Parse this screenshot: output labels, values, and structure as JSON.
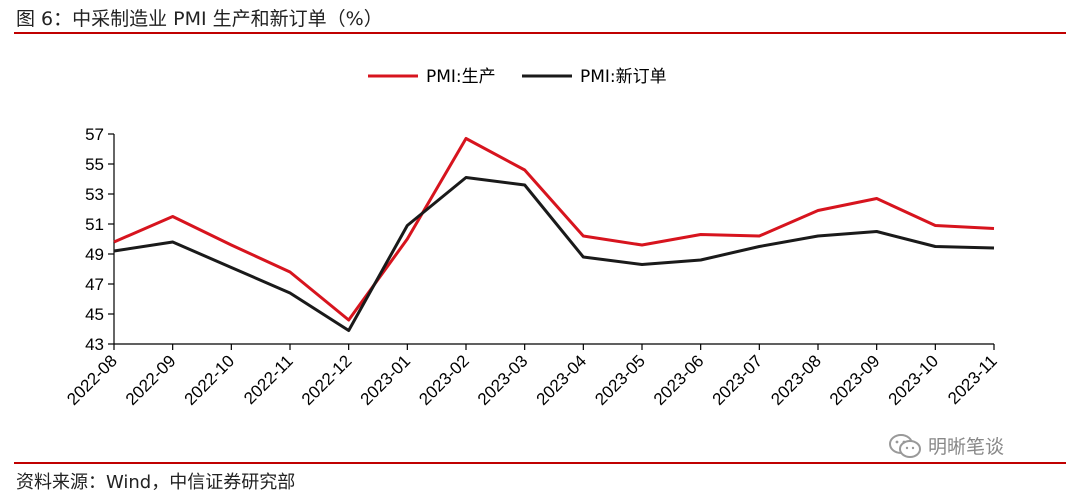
{
  "header": {
    "title": "图 6：中采制造业 PMI 生产和新订单（%）"
  },
  "footer": {
    "source": "资料来源：Wind，中信证券研究部"
  },
  "watermark": {
    "text": "明晰笔谈",
    "icon": "wechat-icon"
  },
  "colors": {
    "rule": "#c00000",
    "series1": "#d7141e",
    "series2": "#1a1a1a"
  },
  "chart_data": {
    "type": "line",
    "title": "",
    "xlabel": "",
    "ylabel": "",
    "x": [
      "2022-08",
      "2022-09",
      "2022-10",
      "2022-11",
      "2022-12",
      "2023-01",
      "2023-02",
      "2023-03",
      "2023-04",
      "2023-05",
      "2023-06",
      "2023-07",
      "2023-08",
      "2023-09",
      "2023-10",
      "2023-11"
    ],
    "ylim": [
      43,
      57
    ],
    "yticks": [
      43,
      45,
      47,
      49,
      51,
      53,
      55,
      57
    ],
    "grid": false,
    "legend_position": "top-center",
    "series": [
      {
        "name": "PMI:生产",
        "color": "#d7141e",
        "values": [
          49.8,
          51.5,
          49.6,
          47.8,
          44.6,
          50.0,
          56.7,
          54.6,
          50.2,
          49.6,
          50.3,
          50.2,
          51.9,
          52.7,
          50.9,
          50.7
        ]
      },
      {
        "name": "PMI:新订单",
        "color": "#1a1a1a",
        "values": [
          49.2,
          49.8,
          48.1,
          46.4,
          43.9,
          50.9,
          54.1,
          53.6,
          48.8,
          48.3,
          48.6,
          49.5,
          50.2,
          50.5,
          49.5,
          49.4
        ]
      }
    ]
  }
}
